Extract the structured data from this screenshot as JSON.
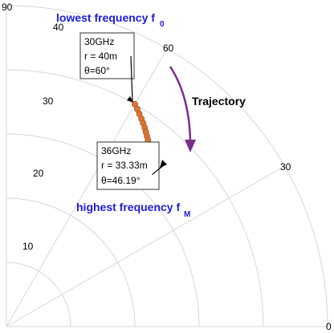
{
  "chart_data": {
    "type": "scatter",
    "coordinate_system": "polar",
    "theta_range_deg": [
      0,
      90
    ],
    "r_range": [
      0,
      50
    ],
    "radial_ticks": [
      "10",
      "20",
      "30",
      "40"
    ],
    "angle_ticks": [
      "0",
      "30",
      "60",
      "90"
    ],
    "grid": true,
    "points": [
      {
        "theta": 60.0,
        "r": 40.0
      },
      {
        "theta": 59.0,
        "r": 39.53
      },
      {
        "theta": 58.0,
        "r": 39.07
      },
      {
        "theta": 57.0,
        "r": 38.61
      },
      {
        "theta": 56.1,
        "r": 38.16
      },
      {
        "theta": 55.2,
        "r": 37.72
      },
      {
        "theta": 54.4,
        "r": 37.29
      },
      {
        "theta": 53.6,
        "r": 36.87
      },
      {
        "theta": 52.8,
        "r": 36.45
      },
      {
        "theta": 52.0,
        "r": 36.04
      },
      {
        "theta": 51.3,
        "r": 35.64
      },
      {
        "theta": 50.6,
        "r": 35.25
      },
      {
        "theta": 49.9,
        "r": 34.86
      },
      {
        "theta": 49.2,
        "r": 34.48
      },
      {
        "theta": 48.5,
        "r": 34.11
      },
      {
        "theta": 47.8,
        "r": 33.75
      },
      {
        "theta": 47.0,
        "r": 33.54
      },
      {
        "theta": 46.19,
        "r": 33.33
      }
    ],
    "marker_color": "#d9773a",
    "marker_edge_color": "#b5541c",
    "annotations": {
      "start_box": [
        "30GHz",
        "r = 40m",
        "θ=60°"
      ],
      "end_box": [
        "36GHz",
        "r = 33.33m",
        "θ=46.19°"
      ],
      "lowest_label": "lowest frequency f",
      "lowest_sub": "0",
      "highest_label": "highest frequency f",
      "highest_sub": "M",
      "trajectory_label": "Trajectory"
    },
    "colors": {
      "label_blue": "#1b1bdc",
      "trajectory_arrow": "#7b2d8e",
      "grid": "#d7d7d7"
    }
  }
}
